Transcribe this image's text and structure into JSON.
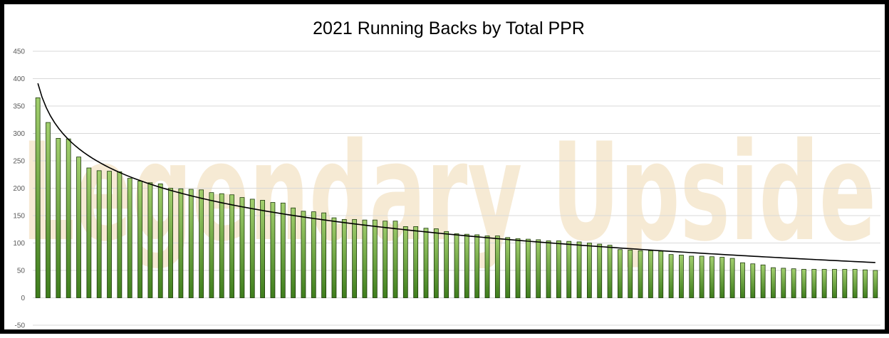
{
  "watermark": "Legendary Upside",
  "colors": {
    "bar_top": "#a2cf6e",
    "bar_bottom": "#3e7d1c",
    "bar_stroke": "#1e3a0c",
    "trend": "#000000",
    "grid": "#d9d9d9",
    "watermark": "#f3e3c6"
  },
  "chart_data": {
    "type": "bar",
    "title": "2021 Running Backs by Total PPR",
    "xlabel": "",
    "ylabel": "",
    "ylim": [
      -50,
      450
    ],
    "yticks": [
      450,
      400,
      350,
      300,
      250,
      200,
      150,
      100,
      50,
      0,
      -50
    ],
    "grid": true,
    "legend": "none",
    "trendline": "logarithmic",
    "values": [
      365,
      320,
      291,
      290,
      257,
      237,
      232,
      231,
      230,
      218,
      213,
      210,
      208,
      200,
      199,
      198,
      197,
      192,
      190,
      188,
      183,
      180,
      178,
      174,
      173,
      164,
      158,
      157,
      155,
      146,
      143,
      143,
      142,
      142,
      140,
      140,
      130,
      130,
      127,
      126,
      121,
      117,
      116,
      115,
      113,
      113,
      110,
      108,
      107,
      106,
      104,
      104,
      103,
      102,
      100,
      98,
      96,
      88,
      87,
      86,
      86,
      85,
      79,
      78,
      76,
      76,
      75,
      74,
      72,
      64,
      62,
      60,
      55,
      54,
      53,
      52,
      52,
      52,
      52,
      52,
      52,
      51,
      50
    ]
  }
}
